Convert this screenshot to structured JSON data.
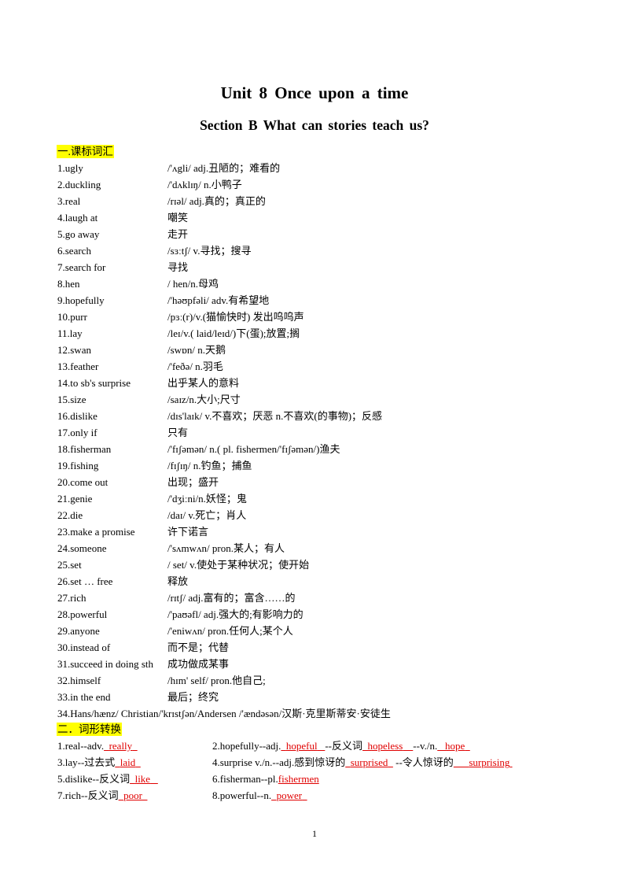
{
  "title": "Unit 8 Once upon a time",
  "subtitle": "Section B What can stories teach us?",
  "section1_heading": "一.课标词汇",
  "vocab": [
    {
      "term": "1.ugly",
      "def": "/'ʌgli/ adj.丑陋的；难看的"
    },
    {
      "term": "2.duckling",
      "def": "/'dʌklɪŋ/ n.小鸭子"
    },
    {
      "term": "3.real",
      "def": "/rɪəl/ adj.真的；真正的"
    },
    {
      "term": "4.laugh at",
      "def": "嘲笑"
    },
    {
      "term": "5.go away",
      "def": "走开"
    },
    {
      "term": "6.search",
      "def": "/sɜːtʃ/ v.寻找；搜寻"
    },
    {
      "term": "7.search for",
      "def": "寻找"
    },
    {
      "term": "8.hen",
      "def": "/ hen/n.母鸡"
    },
    {
      "term": "9.hopefully",
      "def": "/'həʊpfəli/ adv.有希望地"
    },
    {
      "term": "10.purr",
      "def": "/pɜː(r)/v.(猫愉快时) 发出呜呜声"
    },
    {
      "term": "11.lay",
      "def": "/leɪ/v.( laid/leɪd/)下(蛋);放置;搁"
    },
    {
      "term": "12.swan",
      "def": "/swɒn/ n.天鹅"
    },
    {
      "term": "13.feather",
      "def": "/'feðə/ n.羽毛"
    },
    {
      "term": "14.to sb's surprise",
      "def": "出乎某人的意料"
    },
    {
      "term": "15.size",
      "def": "/saɪz/n.大小;尺寸"
    },
    {
      "term": "16.dislike",
      "def": "/dɪs'laɪk/ v.不喜欢；厌恶 n.不喜欢(的事物)；反感"
    },
    {
      "term": "17.only if",
      "def": "只有"
    },
    {
      "term": "18.fisherman",
      "def": "/'fɪʃəmən/ n.( pl. fishermen/'fɪʃəmən/)渔夫"
    },
    {
      "term": "19.fishing",
      "def": "/fɪʃɪŋ/ n.钓鱼；捕鱼"
    },
    {
      "term": "20.come out",
      "def": "出现；盛开"
    },
    {
      "term": "21.genie",
      "def": "/'dʒiːni/n.妖怪；鬼"
    },
    {
      "term": "22.die",
      "def": "/daɪ/ v.死亡；肖人"
    },
    {
      "term": "23.make a promise",
      "def": "许下诺言"
    },
    {
      "term": "24.someone",
      "def": "/'sʌmwʌn/ pron.某人；有人"
    },
    {
      "term": "25.set",
      "def": "/ set/ v.使处于某种状况；使开始"
    },
    {
      "term": "26.set … free",
      "def": "释放"
    },
    {
      "term": "27.rich",
      "def": "/rɪtʃ/ adj.富有的；富含……的"
    },
    {
      "term": "28.powerful",
      "def": "/'paʊəfl/ adj.强大的;有影响力的"
    },
    {
      "term": "29.anyone",
      "def": "/'eniwʌn/ pron.任何人;某个人"
    },
    {
      "term": "30.instead of",
      "def": "而不是；代替"
    },
    {
      "term": "31.succeed in doing sth",
      "def": "成功做成某事"
    },
    {
      "term": "32.himself",
      "def": "/hɪm' self/ pron.他自己;"
    },
    {
      "term": "33.in the end",
      "def": "最后；终究"
    }
  ],
  "vocab_last": "34.Hans/hænz/ Christian/'krɪstʃən/Andersen /'ændəsən/汉斯·克里斯蒂安·安徒生",
  "section2_heading": "二．词形转换",
  "forms": {
    "r1c1_pre": "1.real--adv.",
    "r1c1_ans": "really",
    "r1c2_pre": "2.hopefully--adj.",
    "r1c2_ans1": "hopeful",
    "r1c2_mid1": "--反义词",
    "r1c2_ans2": "hopeless",
    "r1c2_mid2": "--v./n.",
    "r1c2_ans3": "hope",
    "r2c1_pre": "3.lay--过去式",
    "r2c1_ans": "laid",
    "r2c2_pre": "4.surprise v./n.--adj.感到惊讶的",
    "r2c2_ans1": "surprised",
    "r2c2_mid1": "--令人惊讶的",
    "r2c2_ans2": "surprising",
    "r3c1_pre": "5.dislike--反义词",
    "r3c1_ans": "like",
    "r3c2_pre": "6.fisherman--pl.",
    "r3c2_ans": "fishermen",
    "r4c1_pre": "7.rich--反义词",
    "r4c1_ans": "poor",
    "r4c2_pre": "8.powerful--n.",
    "r4c2_ans": "power"
  },
  "page_number": "1"
}
